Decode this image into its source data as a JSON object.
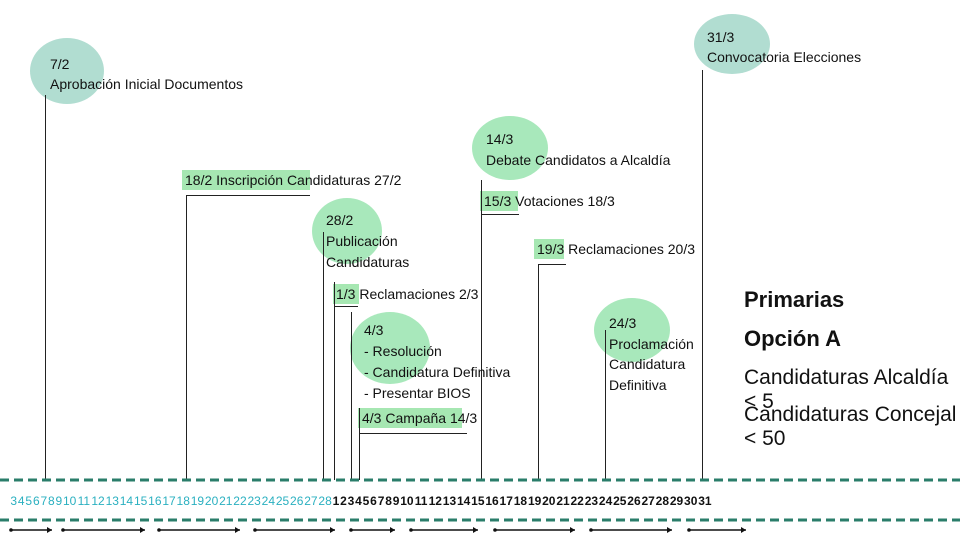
{
  "events": [
    {
      "date": "7/2",
      "text": "Aprobación Inicial Documentos"
    },
    {
      "date": "31/3",
      "text": "Convocatoria Elecciones"
    },
    {
      "date": "14/3",
      "text": "Debate Candidatos a Alcaldía"
    },
    {
      "start": "18/2",
      "text": "Inscripción Candidaturas",
      "end": "27/2"
    },
    {
      "start": "15/3",
      "text": "Votaciones",
      "end": "18/3"
    },
    {
      "date": "28/2",
      "lines": [
        "Publicación",
        "Candidaturas"
      ]
    },
    {
      "start": "19/3",
      "text": "Reclamaciones",
      "end": "20/3"
    },
    {
      "start": "1/3",
      "text": "Reclamaciones",
      "end": "2/3"
    },
    {
      "date": "4/3",
      "lines": [
        "- Resolución",
        "- Candidatura Definitiva",
        "- Presentar BIOS"
      ]
    },
    {
      "start": "4/3",
      "text": "Campaña",
      "end": "14/3"
    },
    {
      "date": "24/3",
      "lines": [
        "Proclamación",
        "Candidatura",
        "Definitiva"
      ]
    }
  ],
  "summary": {
    "title_1": "Primarias",
    "title_2": "Opción A",
    "line_1": "Candidaturas Alcaldía < 5",
    "line_2": "Candidaturas Concejal < 50"
  },
  "axis": {
    "february_days": [
      "3",
      "4",
      "5",
      "6",
      "7",
      "8",
      "9",
      "10",
      "11",
      "12",
      "13",
      "14",
      "15",
      "16",
      "17",
      "18",
      "19",
      "20",
      "21",
      "22",
      "23",
      "24",
      "25",
      "26",
      "27",
      "28"
    ],
    "march_days": [
      "1",
      "2",
      "3",
      "4",
      "5",
      "6",
      "7",
      "8",
      "9",
      "10",
      "11",
      "12",
      "13",
      "14",
      "15",
      "16",
      "17",
      "18",
      "19",
      "20",
      "21",
      "22",
      "23",
      "24",
      "25",
      "26",
      "27",
      "28",
      "29",
      "30",
      "31"
    ],
    "colors": {
      "dash": "#2a7d6a",
      "feb": "#2ab0c0",
      "mar": "#111111",
      "bubble": "#9fe6b4",
      "bubble_teal": "#a9d9cc"
    }
  }
}
